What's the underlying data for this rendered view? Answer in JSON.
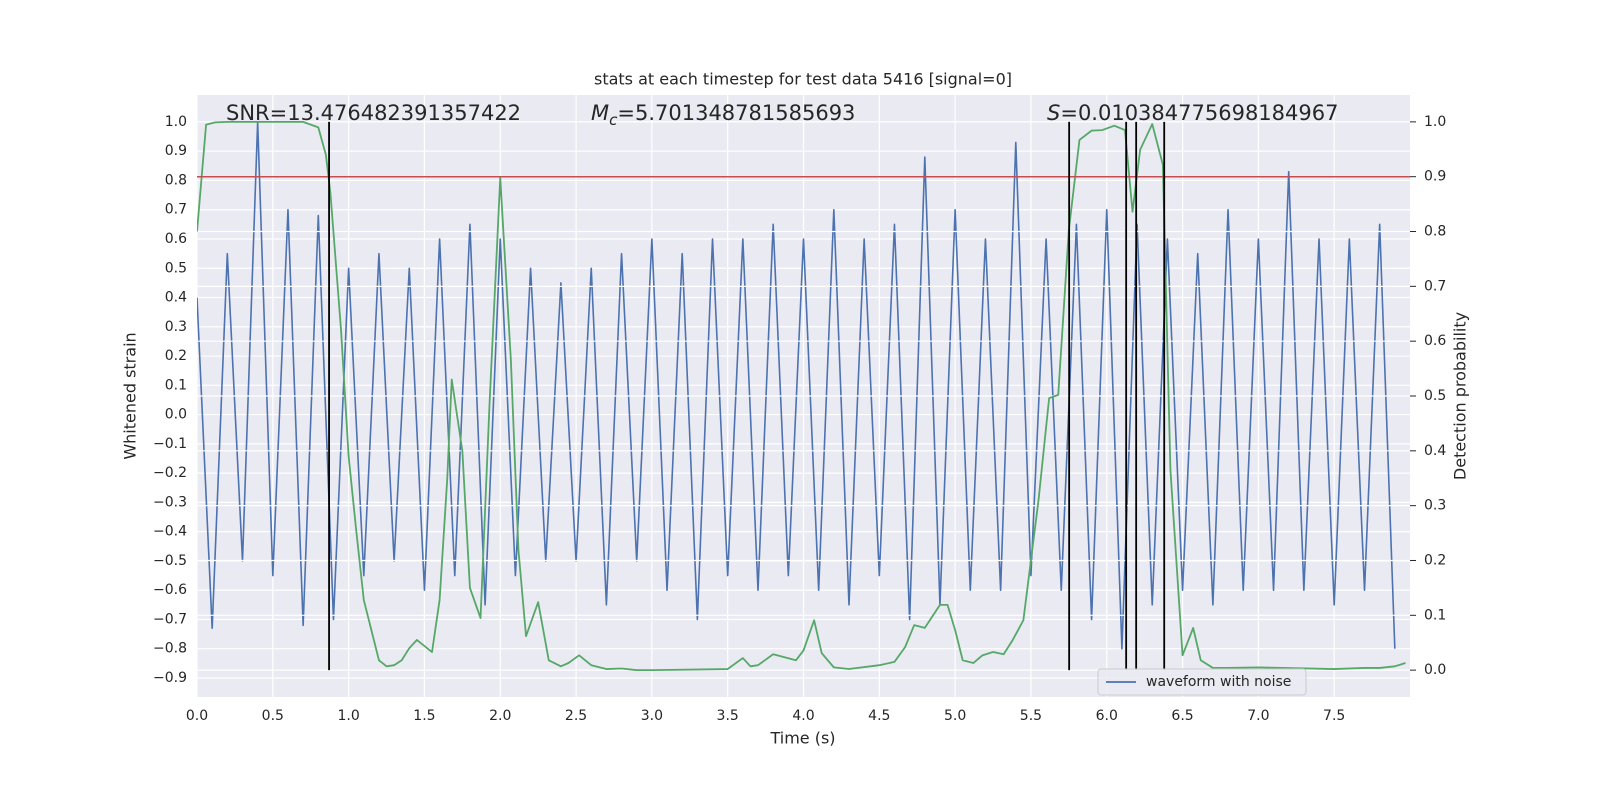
{
  "chart_data": {
    "type": "line",
    "title": "stats at each timestep for test data 5416 [signal=0]",
    "xlabel": "Time (s)",
    "ylabel": "Whitened strain",
    "y2label": "Detection probability",
    "xlim": [
      0,
      8.0
    ],
    "ylim": [
      -0.965,
      1.092
    ],
    "y2lim": [
      -0.049,
      1.049
    ],
    "xticks": [
      {
        "value": 0,
        "label": "0.0"
      },
      {
        "value": 0.5,
        "label": "0.5"
      },
      {
        "value": 1,
        "label": "1.0"
      },
      {
        "value": 1.5,
        "label": "1.5"
      },
      {
        "value": 2,
        "label": "2.0"
      },
      {
        "value": 2.5,
        "label": "2.5"
      },
      {
        "value": 3,
        "label": "3.0"
      },
      {
        "value": 3.5,
        "label": "3.5"
      },
      {
        "value": 4,
        "label": "4.0"
      },
      {
        "value": 4.5,
        "label": "4.5"
      },
      {
        "value": 5,
        "label": "5.0"
      },
      {
        "value": 5.5,
        "label": "5.5"
      },
      {
        "value": 6,
        "label": "6.0"
      },
      {
        "value": 6.5,
        "label": "6.5"
      },
      {
        "value": 7,
        "label": "7.0"
      },
      {
        "value": 7.5,
        "label": "7.5"
      }
    ],
    "yticks": [
      {
        "value": 1,
        "label": "1.0"
      },
      {
        "value": 0.9,
        "label": "0.9"
      },
      {
        "value": 0.8,
        "label": "0.8"
      },
      {
        "value": 0.7,
        "label": "0.7"
      },
      {
        "value": 0.6,
        "label": "0.6"
      },
      {
        "value": 0.5,
        "label": "0.5"
      },
      {
        "value": 0.4,
        "label": "0.4"
      },
      {
        "value": 0.3,
        "label": "0.3"
      },
      {
        "value": 0.2,
        "label": "0.2"
      },
      {
        "value": 0.1,
        "label": "0.1"
      },
      {
        "value": 0,
        "label": "0.0"
      },
      {
        "value": -0.1,
        "label": "−0.1"
      },
      {
        "value": -0.2,
        "label": "−0.2"
      },
      {
        "value": -0.3,
        "label": "−0.3"
      },
      {
        "value": -0.4,
        "label": "−0.4"
      },
      {
        "value": -0.5,
        "label": "−0.5"
      },
      {
        "value": -0.6,
        "label": "−0.6"
      },
      {
        "value": -0.7,
        "label": "−0.7"
      },
      {
        "value": -0.8,
        "label": "−0.8"
      },
      {
        "value": -0.9,
        "label": "−0.9"
      }
    ],
    "y2ticks": [
      {
        "value": 0,
        "label": "0.0"
      },
      {
        "value": 0.1,
        "label": "0.1"
      },
      {
        "value": 0.2,
        "label": "0.2"
      },
      {
        "value": 0.3,
        "label": "0.3"
      },
      {
        "value": 0.4,
        "label": "0.4"
      },
      {
        "value": 0.5,
        "label": "0.5"
      },
      {
        "value": 0.6,
        "label": "0.6"
      },
      {
        "value": 0.7,
        "label": "0.7"
      },
      {
        "value": 0.8,
        "label": "0.8"
      },
      {
        "value": 0.9,
        "label": "0.9"
      },
      {
        "value": 1,
        "label": "1.0"
      }
    ],
    "grid": true,
    "legend": "lower right",
    "series": [
      {
        "name": "waveform with noise",
        "color": "#4c72b0",
        "x": [
          0,
          0.1,
          0.2,
          0.3,
          0.4,
          0.5,
          0.6,
          0.7,
          0.8,
          0.9,
          1.0,
          1.1,
          1.2,
          1.3,
          1.4,
          1.5,
          1.6,
          1.7,
          1.8,
          1.9,
          2.0,
          2.1,
          2.2,
          2.3,
          2.4,
          2.5,
          2.6,
          2.7,
          2.8,
          2.9,
          3.0,
          3.1,
          3.2,
          3.3,
          3.4,
          3.5,
          3.6,
          3.7,
          3.8,
          3.9,
          4.0,
          4.1,
          4.2,
          4.3,
          4.4,
          4.5,
          4.6,
          4.7,
          4.8,
          4.9,
          5.0,
          5.1,
          5.2,
          5.3,
          5.4,
          5.5,
          5.6,
          5.7,
          5.8,
          5.9,
          6.0,
          6.1,
          6.2,
          6.3,
          6.4,
          6.5,
          6.6,
          6.7,
          6.8,
          6.9,
          7.0,
          7.1,
          7.2,
          7.3,
          7.4,
          7.5,
          7.6,
          7.7,
          7.8,
          7.9
        ],
        "values": [
          0.4,
          -0.73,
          0.55,
          -0.5,
          1.0,
          -0.55,
          0.7,
          -0.72,
          0.68,
          -0.7,
          0.5,
          -0.55,
          0.55,
          -0.5,
          0.5,
          -0.6,
          0.6,
          -0.55,
          0.65,
          -0.65,
          0.6,
          -0.55,
          0.5,
          -0.5,
          0.45,
          -0.5,
          0.5,
          -0.65,
          0.55,
          -0.5,
          0.6,
          -0.6,
          0.55,
          -0.7,
          0.6,
          -0.55,
          0.6,
          -0.6,
          0.65,
          -0.55,
          0.6,
          -0.6,
          0.7,
          -0.65,
          0.6,
          -0.55,
          0.65,
          -0.7,
          0.88,
          -0.65,
          0.7,
          -0.6,
          0.6,
          -0.6,
          0.93,
          -0.55,
          0.6,
          -0.6,
          0.65,
          -0.7,
          0.7,
          -0.8,
          0.65,
          -0.65,
          0.6,
          -0.6,
          0.55,
          -0.65,
          0.7,
          -0.6,
          0.6,
          -0.6,
          0.83,
          -0.6,
          0.6,
          -0.65,
          0.6,
          -0.6,
          0.65,
          -0.8
        ]
      },
      {
        "color": "#55a868",
        "axis": "y2",
        "x": [
          0,
          0.06,
          0.12,
          0.2,
          0.7,
          0.75,
          0.8,
          0.85,
          0.88,
          0.95,
          1.0,
          1.05,
          1.1,
          1.15,
          1.2,
          1.25,
          1.3,
          1.35,
          1.4,
          1.45,
          1.55,
          1.6,
          1.65,
          1.68,
          1.75,
          1.8,
          1.87,
          1.93,
          2.0,
          2.07,
          2.12,
          2.17,
          2.25,
          2.32,
          2.4,
          2.45,
          2.52,
          2.6,
          2.7,
          2.8,
          2.9,
          3.0,
          3.5,
          3.6,
          3.65,
          3.7,
          3.8,
          3.95,
          4.0,
          4.07,
          4.12,
          4.2,
          4.3,
          4.5,
          4.6,
          4.67,
          4.73,
          4.8,
          4.9,
          4.95,
          5.0,
          5.05,
          5.12,
          5.18,
          5.25,
          5.32,
          5.38,
          5.45,
          5.55,
          5.62,
          5.68,
          5.75,
          5.82,
          5.9,
          5.97,
          6.05,
          6.12,
          6.17,
          6.22,
          6.3,
          6.37,
          6.42,
          6.5,
          6.57,
          6.62,
          6.7,
          6.8,
          7.0,
          7.5,
          7.7,
          7.8,
          7.9,
          7.97
        ],
        "values": [
          0.8,
          0.995,
          0.999,
          1.0,
          1.0,
          0.995,
          0.99,
          0.94,
          0.87,
          0.62,
          0.39,
          0.255,
          0.128,
          0.073,
          0.018,
          0.007,
          0.009,
          0.018,
          0.04,
          0.055,
          0.033,
          0.128,
          0.347,
          0.53,
          0.4,
          0.15,
          0.095,
          0.49,
          0.898,
          0.566,
          0.219,
          0.062,
          0.124,
          0.018,
          0.007,
          0.013,
          0.027,
          0.009,
          0.002,
          0.003,
          0.0,
          0.0,
          0.002,
          0.022,
          0.007,
          0.009,
          0.029,
          0.018,
          0.036,
          0.091,
          0.031,
          0.005,
          0.002,
          0.009,
          0.015,
          0.042,
          0.082,
          0.077,
          0.119,
          0.119,
          0.073,
          0.018,
          0.013,
          0.027,
          0.033,
          0.029,
          0.055,
          0.091,
          0.31,
          0.496,
          0.502,
          0.803,
          0.967,
          0.984,
          0.985,
          0.993,
          0.985,
          0.836,
          0.949,
          0.996,
          0.922,
          0.365,
          0.027,
          0.077,
          0.018,
          0.004,
          0.004,
          0.005,
          0.002,
          0.004,
          0.004,
          0.007,
          0.013
        ]
      }
    ],
    "threshold": {
      "value": 0.9,
      "axis": "y2",
      "color": "#c44e52"
    },
    "vlines": {
      "x": [
        0.871,
        5.752,
        6.128,
        6.194,
        6.379
      ],
      "ymin": 0,
      "ymax": 1,
      "axis": "y2",
      "color": "#000000"
    },
    "annotations": [
      {
        "text": "SNR=13.476482391357422"
      },
      {
        "symbol": "M",
        "subscript": "c",
        "text": "=5.701348781585693"
      },
      {
        "symbol": "S",
        "text": "=0.010384775698184967"
      }
    ]
  }
}
